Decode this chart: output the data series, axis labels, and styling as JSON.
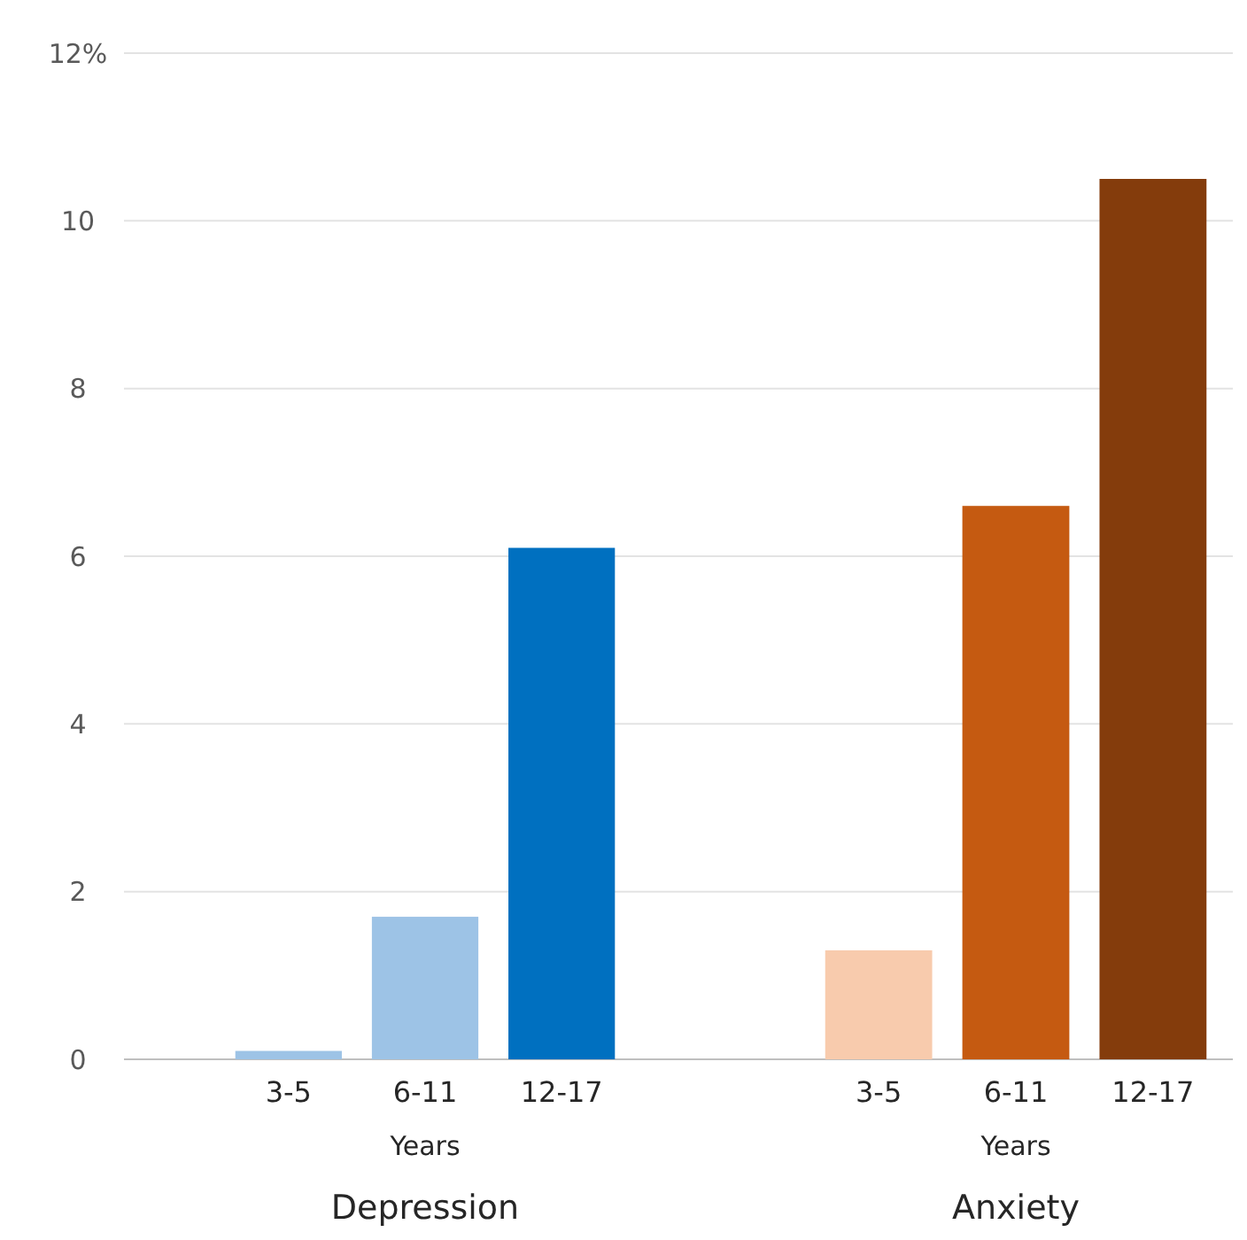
{
  "chart_data": [
    {
      "type": "bar",
      "title": "Depression",
      "xlabel": "Years",
      "categories": [
        "3-5",
        "6-11",
        "12-17"
      ],
      "values": [
        0.1,
        1.7,
        6.1
      ],
      "colors": [
        "#9dc3e6",
        "#9dc3e6",
        "#0070c0"
      ],
      "ylim": [
        0,
        12
      ],
      "yticks": [
        0,
        2,
        4,
        6,
        8,
        10,
        {
          "value": 12,
          "label": "12%"
        }
      ],
      "grid": "y"
    },
    {
      "type": "bar",
      "title": "Anxiety",
      "xlabel": "Years",
      "categories": [
        "3-5",
        "6-11",
        "12-17"
      ],
      "values": [
        1.3,
        6.6,
        10.5
      ],
      "colors": [
        "#f8cbad",
        "#c55a11",
        "#843c0c"
      ],
      "ylim": [
        0,
        12
      ],
      "yticks": [
        0,
        2,
        4,
        6,
        8,
        10,
        12
      ],
      "grid": "y",
      "tick_labels": "x"
    }
  ]
}
